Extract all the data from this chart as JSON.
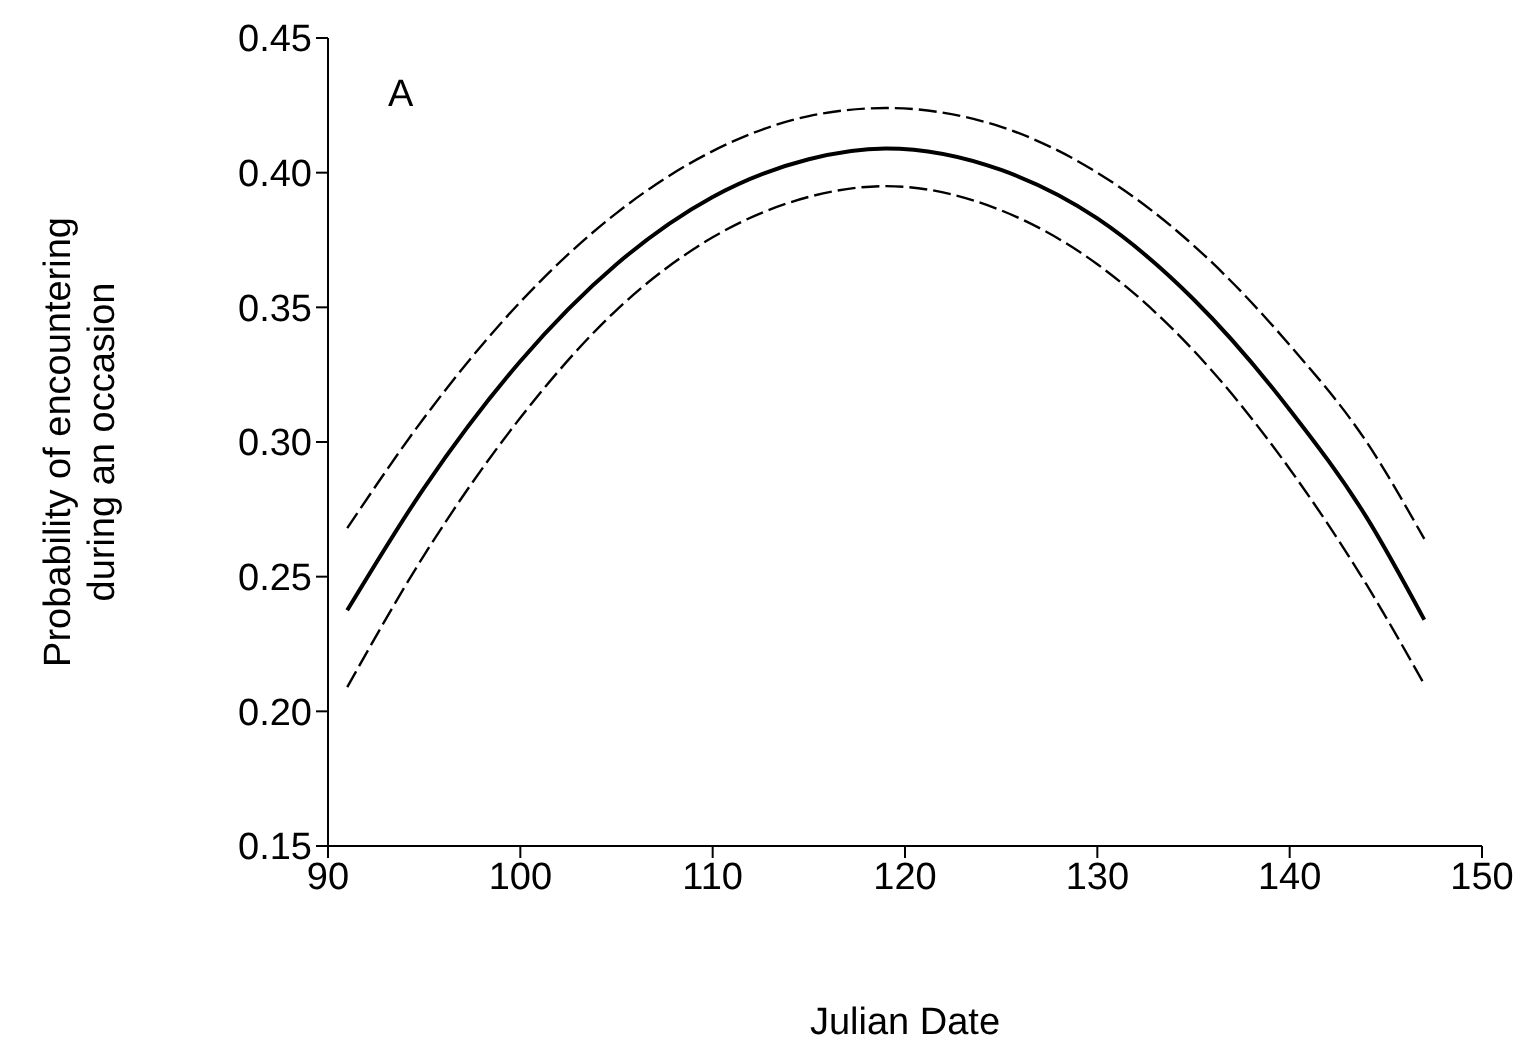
{
  "chart_data": {
    "type": "line",
    "xlabel": "Julian Date",
    "ylabel": "Probability of encountering\nduring an occasion",
    "annotations": [
      "A"
    ],
    "x": [
      91,
      95,
      100,
      105,
      110,
      115,
      119,
      125,
      130,
      135,
      140,
      144,
      147
    ],
    "series": [
      {
        "color": "#000000",
        "line_style": "dashed",
        "values": [
          0.268,
          0.309,
          0.352,
          0.385,
          0.408,
          0.421,
          0.424,
          0.417,
          0.4,
          0.373,
          0.336,
          0.3,
          0.264
        ]
      },
      {
        "color": "#000000",
        "line_style": "solid",
        "values": [
          0.2375,
          0.283,
          0.33,
          0.366,
          0.391,
          0.405,
          0.409,
          0.401,
          0.383,
          0.353,
          0.312,
          0.272,
          0.234
        ]
      },
      {
        "color": "#000000",
        "line_style": "dashed",
        "values": [
          0.209,
          0.258,
          0.309,
          0.349,
          0.376,
          0.391,
          0.395,
          0.386,
          0.366,
          0.334,
          0.29,
          0.247,
          0.21
        ]
      }
    ],
    "xlim": [
      90,
      150
    ],
    "xticks": [
      90,
      100,
      110,
      120,
      130,
      140,
      150
    ],
    "ylim": [
      0.15,
      0.45
    ],
    "yticks": [
      {
        "value": 0.15,
        "label": "0.15"
      },
      {
        "value": 0.2,
        "label": "0.20"
      },
      {
        "value": 0.25,
        "label": "0.25"
      },
      {
        "value": 0.3,
        "label": "0.30"
      },
      {
        "value": 0.35,
        "label": "0.35"
      },
      {
        "value": 0.4,
        "label": "0.40"
      },
      {
        "value": 0.45,
        "label": "0.45"
      }
    ],
    "grid": false,
    "legend": false,
    "marker": "none"
  }
}
